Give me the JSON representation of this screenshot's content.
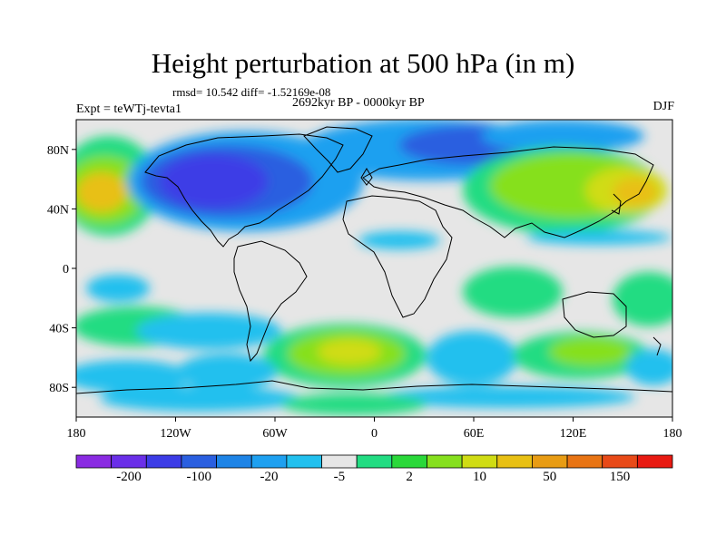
{
  "title": "Height perturbation at 500 hPa (in m)",
  "subtitle_stats": "rmsd= 10.542 diff= -1.52169e-08",
  "subtitle_period": "2692kyr BP - 0000kyr BP",
  "experiment": "Expt = teWTj-tevta1",
  "season": "DJF",
  "axes": {
    "x_ticks": [
      "180",
      "120W",
      "60W",
      "0",
      "60E",
      "120E",
      "180"
    ],
    "y_ticks": [
      "80N",
      "40N",
      "0",
      "40S",
      "80S"
    ]
  },
  "colorbar": {
    "colors": [
      "#8a2be2",
      "#6a2fe8",
      "#3c3ce6",
      "#2a5fe0",
      "#1e84e6",
      "#1ea0f0",
      "#22c0ee",
      "#e6e6e6",
      "#22dc82",
      "#2ad83a",
      "#86e01e",
      "#d0dc14",
      "#e8c014",
      "#e89c14",
      "#e87414",
      "#e84a18",
      "#e81a12"
    ],
    "labels": [
      "-200",
      "-100",
      "-20",
      "-5",
      "2",
      "10",
      "50",
      "150"
    ]
  }
}
